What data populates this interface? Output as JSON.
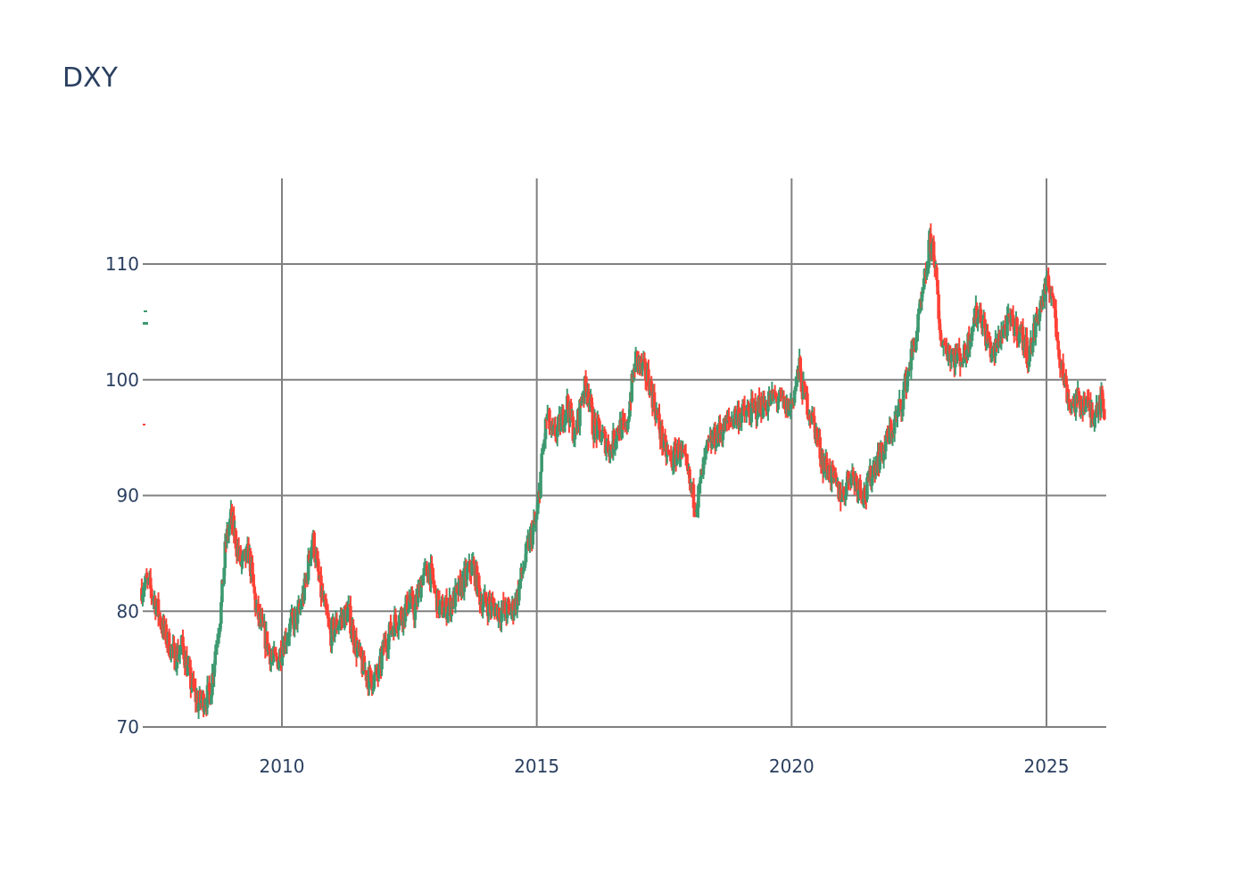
{
  "title": "DXY",
  "chart_data": {
    "type": "candlestick",
    "title": "DXY",
    "xlabel": "",
    "ylabel": "",
    "x_ticks": [
      "2010",
      "2015",
      "2020",
      "2025"
    ],
    "y_ticks": [
      70,
      80,
      90,
      100,
      110
    ],
    "xlim": [
      2007.25,
      2026.15
    ],
    "ylim": [
      68.5,
      117.5
    ],
    "grid": true,
    "legend": "none",
    "increasing_color": "#3d9970",
    "decreasing_color": "#ff4136",
    "approx_close_series": {
      "x": [
        2007.25,
        2007.35,
        2007.5,
        2007.7,
        2007.9,
        2008.05,
        2008.2,
        2008.35,
        2008.5,
        2008.6,
        2008.7,
        2008.8,
        2008.9,
        2009.0,
        2009.1,
        2009.2,
        2009.35,
        2009.5,
        2009.65,
        2009.8,
        2009.9,
        2010.0,
        2010.2,
        2010.35,
        2010.45,
        2010.6,
        2010.75,
        2010.85,
        2010.95,
        2011.1,
        2011.3,
        2011.45,
        2011.6,
        2011.75,
        2011.9,
        2012.0,
        2012.2,
        2012.4,
        2012.5,
        2012.6,
        2012.75,
        2012.9,
        2013.1,
        2013.3,
        2013.5,
        2013.6,
        2013.75,
        2013.9,
        2014.1,
        2014.3,
        2014.5,
        2014.6,
        2014.75,
        2014.85,
        2015.0,
        2015.1,
        2015.2,
        2015.3,
        2015.45,
        2015.6,
        2015.75,
        2015.9,
        2016.0,
        2016.1,
        2016.3,
        2016.45,
        2016.6,
        2016.75,
        2016.85,
        2016.95,
        2017.05,
        2017.2,
        2017.35,
        2017.5,
        2017.65,
        2017.8,
        2017.95,
        2018.05,
        2018.15,
        2018.25,
        2018.35,
        2018.5,
        2018.7,
        2018.9,
        2019.1,
        2019.3,
        2019.5,
        2019.7,
        2019.9,
        2020.0,
        2020.15,
        2020.22,
        2020.3,
        2020.45,
        2020.6,
        2020.75,
        2020.9,
        2021.0,
        2021.15,
        2021.3,
        2021.45,
        2021.6,
        2021.75,
        2021.9,
        2022.0,
        2022.15,
        2022.3,
        2022.45,
        2022.6,
        2022.72,
        2022.8,
        2022.9,
        2023.0,
        2023.2,
        2023.4,
        2023.55,
        2023.7,
        2023.8,
        2023.95,
        2024.1,
        2024.3,
        2024.5,
        2024.65,
        2024.75,
        2024.85,
        2025.0,
        2025.1,
        2025.2,
        2025.3,
        2025.45,
        2025.6,
        2025.75,
        2025.9,
        2026.05,
        2026.15
      ],
      "close": [
        82,
        82.5,
        81,
        78,
        76,
        77,
        74,
        72,
        72.5,
        73,
        77,
        80,
        86,
        88,
        86,
        84,
        85,
        80,
        78,
        76,
        75.5,
        77,
        79,
        80,
        82,
        86.5,
        82,
        80,
        78,
        79,
        80,
        77,
        75,
        74,
        74.5,
        77,
        79,
        80,
        81,
        80,
        83,
        83.5,
        80,
        80.5,
        82,
        83,
        84,
        81,
        80.5,
        80,
        80,
        81,
        84,
        86,
        88,
        93,
        97,
        95,
        96,
        98,
        95,
        99,
        99.5,
        96,
        95,
        94,
        96,
        95.5,
        99,
        102,
        101,
        100,
        97,
        94,
        93,
        94,
        92,
        90,
        89.5,
        92,
        94,
        95,
        96,
        97,
        97,
        97.5,
        98,
        98.5,
        97.5,
        98,
        101,
        99,
        98,
        96,
        93,
        92,
        90.5,
        90,
        92,
        91,
        90,
        92.5,
        93.5,
        95,
        96,
        98,
        101,
        104,
        108,
        112,
        111,
        104,
        103,
        102,
        102,
        105,
        106,
        104,
        102,
        104,
        105,
        104,
        102,
        104,
        106,
        108,
        108,
        104,
        101,
        98,
        98,
        98,
        97,
        98.5,
        97
      ]
    }
  }
}
